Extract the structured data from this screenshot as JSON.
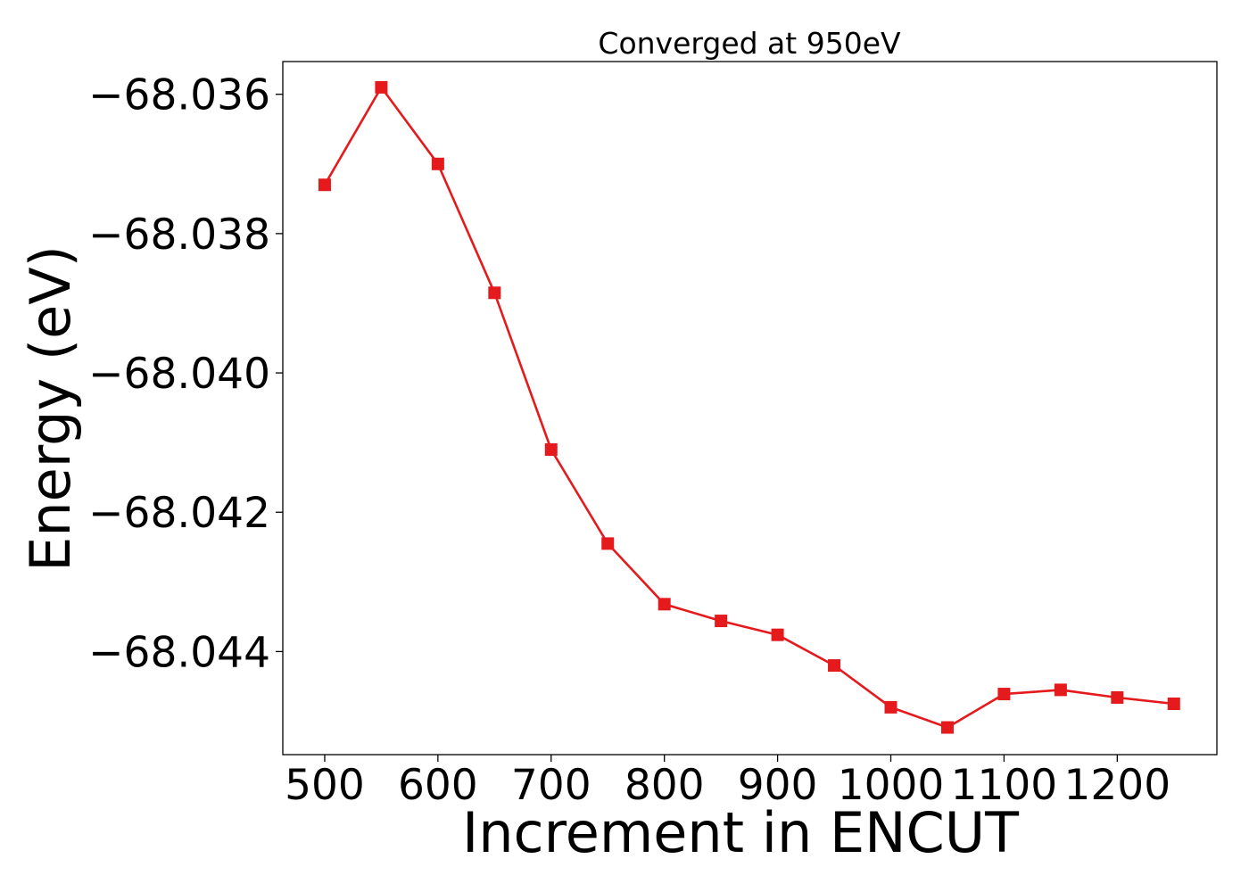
{
  "chart_data": {
    "type": "line",
    "title": "Converged at 950eV",
    "xlabel": "Increment in ENCUT",
    "ylabel": "Energy (eV)",
    "xlim": [
      463,
      1288
    ],
    "ylim": [
      -68.04548,
      -68.03553
    ],
    "xticks": [
      {
        "value": 500,
        "label": "500"
      },
      {
        "value": 600,
        "label": "600"
      },
      {
        "value": 700,
        "label": "700"
      },
      {
        "value": 800,
        "label": "800"
      },
      {
        "value": 900,
        "label": "900"
      },
      {
        "value": 1000,
        "label": "1000"
      },
      {
        "value": 1100,
        "label": "1100"
      },
      {
        "value": 1200,
        "label": "1200"
      }
    ],
    "yticks": [
      {
        "value": -68.036,
        "label": "−68.036"
      },
      {
        "value": -68.038,
        "label": "−68.038"
      },
      {
        "value": -68.04,
        "label": "−68.040"
      },
      {
        "value": -68.042,
        "label": "−68.042"
      },
      {
        "value": -68.044,
        "label": "−68.044"
      }
    ],
    "grid": false,
    "legend": null,
    "series": [
      {
        "color": "#e41a1c",
        "marker": "square",
        "x": [
          500,
          550,
          600,
          650,
          700,
          750,
          800,
          850,
          900,
          950,
          1000,
          1050,
          1100,
          1150,
          1200,
          1250
        ],
        "y": [
          -68.0373,
          -68.0359,
          -68.037,
          -68.03885,
          -68.0411,
          -68.04245,
          -68.04332,
          -68.04356,
          -68.04376,
          -68.0442,
          -68.0448,
          -68.04509,
          -68.04461,
          -68.04455,
          -68.04466,
          -68.04475
        ]
      }
    ]
  }
}
